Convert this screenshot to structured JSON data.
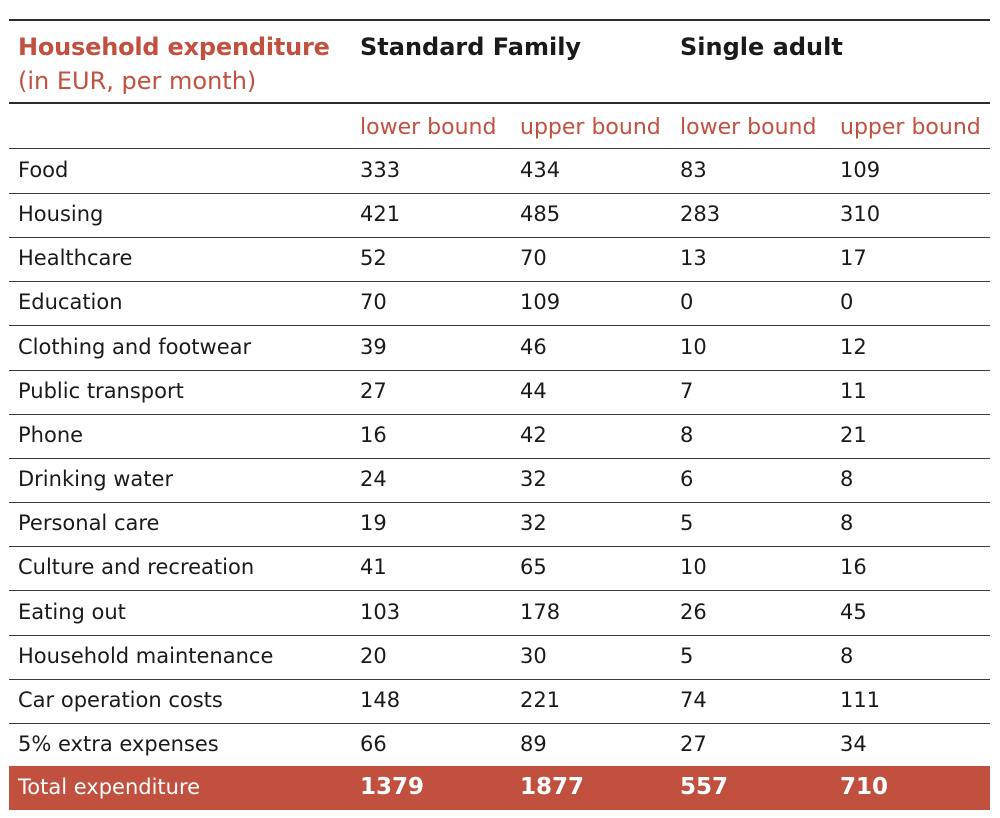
{
  "table": {
    "title": "Household expenditure",
    "subtitle": "(in EUR, per month)",
    "groups": [
      "Standard Family",
      "Single adult"
    ],
    "subheaders": [
      "lower bound",
      "upper bound",
      "lower bound",
      "upper bound"
    ],
    "rows": [
      {
        "label": "Food",
        "values": [
          "333",
          "434",
          "83",
          "109"
        ]
      },
      {
        "label": "Housing",
        "values": [
          "421",
          "485",
          "283",
          "310"
        ]
      },
      {
        "label": "Healthcare",
        "values": [
          "52",
          "70",
          "13",
          "17"
        ]
      },
      {
        "label": "Education",
        "values": [
          "70",
          "109",
          "0",
          "0"
        ]
      },
      {
        "label": "Clothing and footwear",
        "values": [
          "39",
          "46",
          "10",
          "12"
        ]
      },
      {
        "label": "Public transport",
        "values": [
          "27",
          "44",
          "7",
          "11"
        ]
      },
      {
        "label": "Phone",
        "values": [
          "16",
          "42",
          "8",
          "21"
        ]
      },
      {
        "label": "Drinking water",
        "values": [
          "24",
          "32",
          "6",
          "8"
        ]
      },
      {
        "label": "Personal care",
        "values": [
          "19",
          "32",
          "5",
          "8"
        ]
      },
      {
        "label": "Culture and recreation",
        "values": [
          "41",
          "65",
          "10",
          "16"
        ]
      },
      {
        "label": "Eating out",
        "values": [
          "103",
          "178",
          "26",
          "45"
        ]
      },
      {
        "label": "Household maintenance",
        "values": [
          "20",
          "30",
          "5",
          "8"
        ]
      },
      {
        "label": "Car operation costs",
        "values": [
          "148",
          "221",
          "74",
          "111"
        ]
      },
      {
        "label": "5% extra expenses",
        "values": [
          "66",
          "89",
          "27",
          "34"
        ]
      }
    ],
    "total": {
      "label": "Total expenditure",
      "values": [
        "1379",
        "1877",
        "557",
        "710"
      ]
    }
  },
  "colors": {
    "accent": "#c1503f",
    "text": "#1a1a1a",
    "rule": "#2b2b2b"
  }
}
